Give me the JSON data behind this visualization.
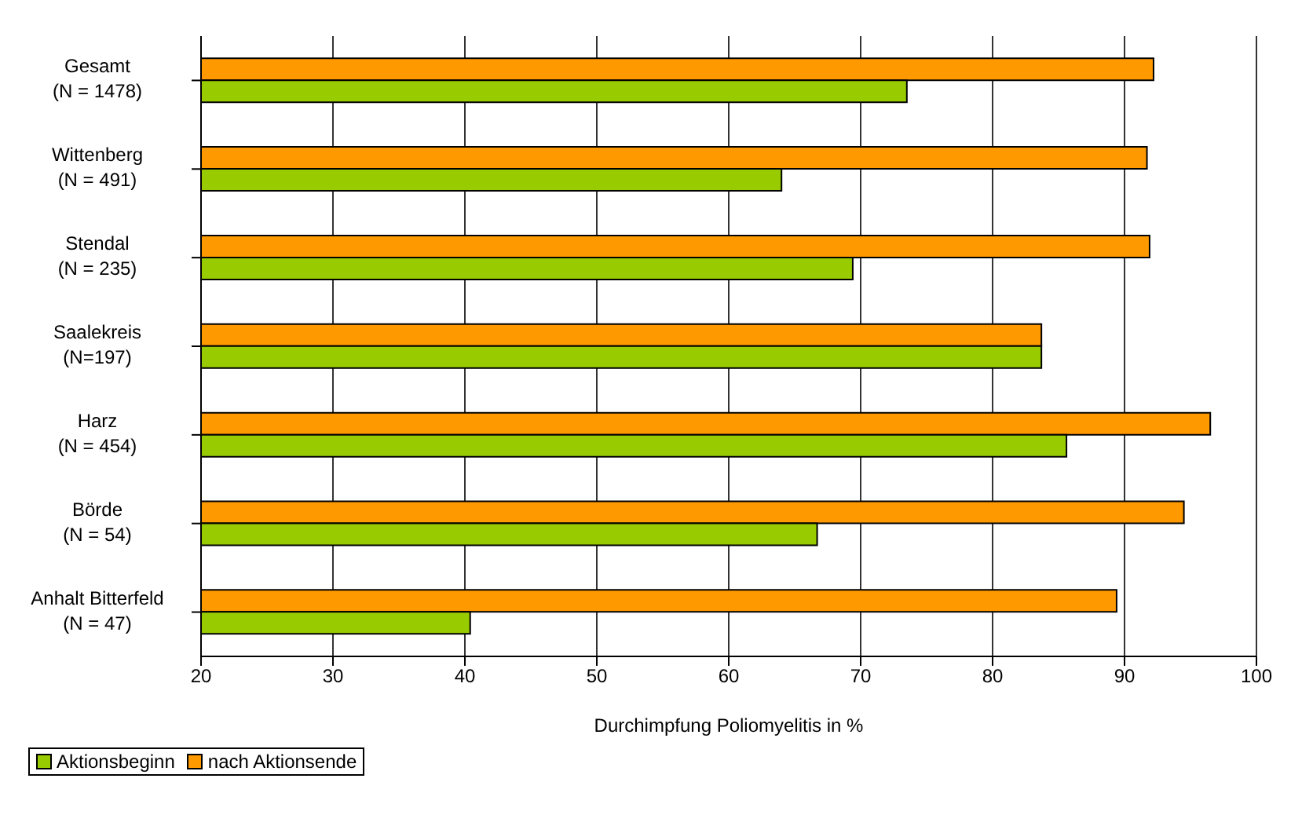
{
  "chart_data": {
    "type": "bar",
    "orientation": "horizontal",
    "xlabel": "Durchimpfung Poliomyelitis in %",
    "categories": [
      "Gesamt\n(N = 1478)",
      "Wittenberg\n(N = 491)",
      "Stendal\n(N = 235)",
      "Saalekreis\n(N=197)",
      "Harz\n(N = 454)",
      "Börde\n(N = 54)",
      "Anhalt Bitterfeld\n(N = 47)"
    ],
    "series": [
      {
        "name": "Aktionsbeginn",
        "color": "#99cc00",
        "values": [
          73.5,
          64.0,
          69.4,
          83.7,
          85.6,
          66.7,
          40.4
        ]
      },
      {
        "name": "nach Aktionsende",
        "color": "#ff9900",
        "values": [
          92.2,
          91.7,
          91.9,
          83.7,
          96.5,
          94.5,
          89.4
        ]
      }
    ],
    "xlim": [
      20,
      100
    ],
    "xticks": [
      20,
      30,
      40,
      50,
      60,
      70,
      80,
      90,
      100
    ],
    "grid": "x",
    "legend": "bottom left"
  }
}
